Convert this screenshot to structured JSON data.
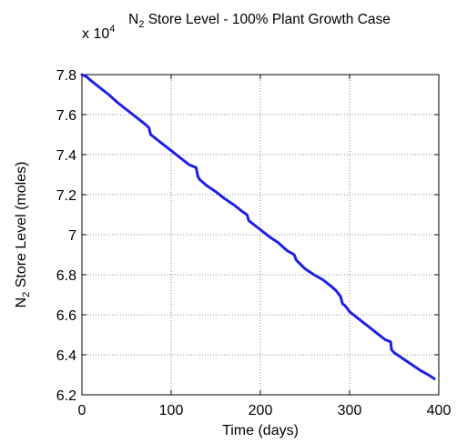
{
  "chart_data": {
    "type": "line",
    "title_parts": [
      "N",
      "2",
      " Store Level - 100% Plant Growth Case"
    ],
    "exponent_label_parts": [
      "x 10",
      "4"
    ],
    "xlabel": "Time (days)",
    "ylabel_parts": [
      "N",
      "2",
      " Store Level (moles)"
    ],
    "xlim": [
      0,
      400
    ],
    "ylim": [
      6.2,
      7.8
    ],
    "xticks": [
      0,
      100,
      200,
      300,
      400
    ],
    "xtick_labels": [
      "0",
      "100",
      "200",
      "300",
      "400"
    ],
    "yticks": [
      6.2,
      6.4,
      6.6,
      6.8,
      7.0,
      7.2,
      7.4,
      7.6,
      7.8
    ],
    "ytick_labels": [
      "6.2",
      "6.4",
      "6.6",
      "6.8",
      "7",
      "7.2",
      "7.4",
      "7.6",
      "7.8"
    ],
    "grid": true,
    "grid_style": "dotted",
    "series": [
      {
        "color": "#1f1fe6",
        "x": [
          0,
          5,
          10,
          20,
          30,
          40,
          50,
          60,
          70,
          75,
          77,
          80,
          90,
          100,
          110,
          120,
          128,
          130,
          132,
          140,
          150,
          160,
          170,
          180,
          185,
          187,
          190,
          200,
          210,
          220,
          230,
          238,
          240,
          242,
          250,
          260,
          270,
          280,
          285,
          290,
          292,
          295,
          300,
          310,
          320,
          330,
          340,
          346,
          347,
          350,
          360,
          370,
          380,
          390,
          395
        ],
        "y": [
          7.8,
          7.79,
          7.77,
          7.735,
          7.7,
          7.66,
          7.625,
          7.59,
          7.555,
          7.535,
          7.5,
          7.49,
          7.455,
          7.42,
          7.385,
          7.35,
          7.335,
          7.29,
          7.275,
          7.245,
          7.215,
          7.18,
          7.15,
          7.115,
          7.1,
          7.07,
          7.06,
          7.025,
          6.99,
          6.96,
          6.92,
          6.9,
          6.875,
          6.865,
          6.83,
          6.8,
          6.775,
          6.74,
          6.72,
          6.69,
          6.655,
          6.645,
          6.615,
          6.58,
          6.545,
          6.51,
          6.475,
          6.465,
          6.425,
          6.41,
          6.38,
          6.35,
          6.32,
          6.295,
          6.28
        ]
      }
    ]
  }
}
